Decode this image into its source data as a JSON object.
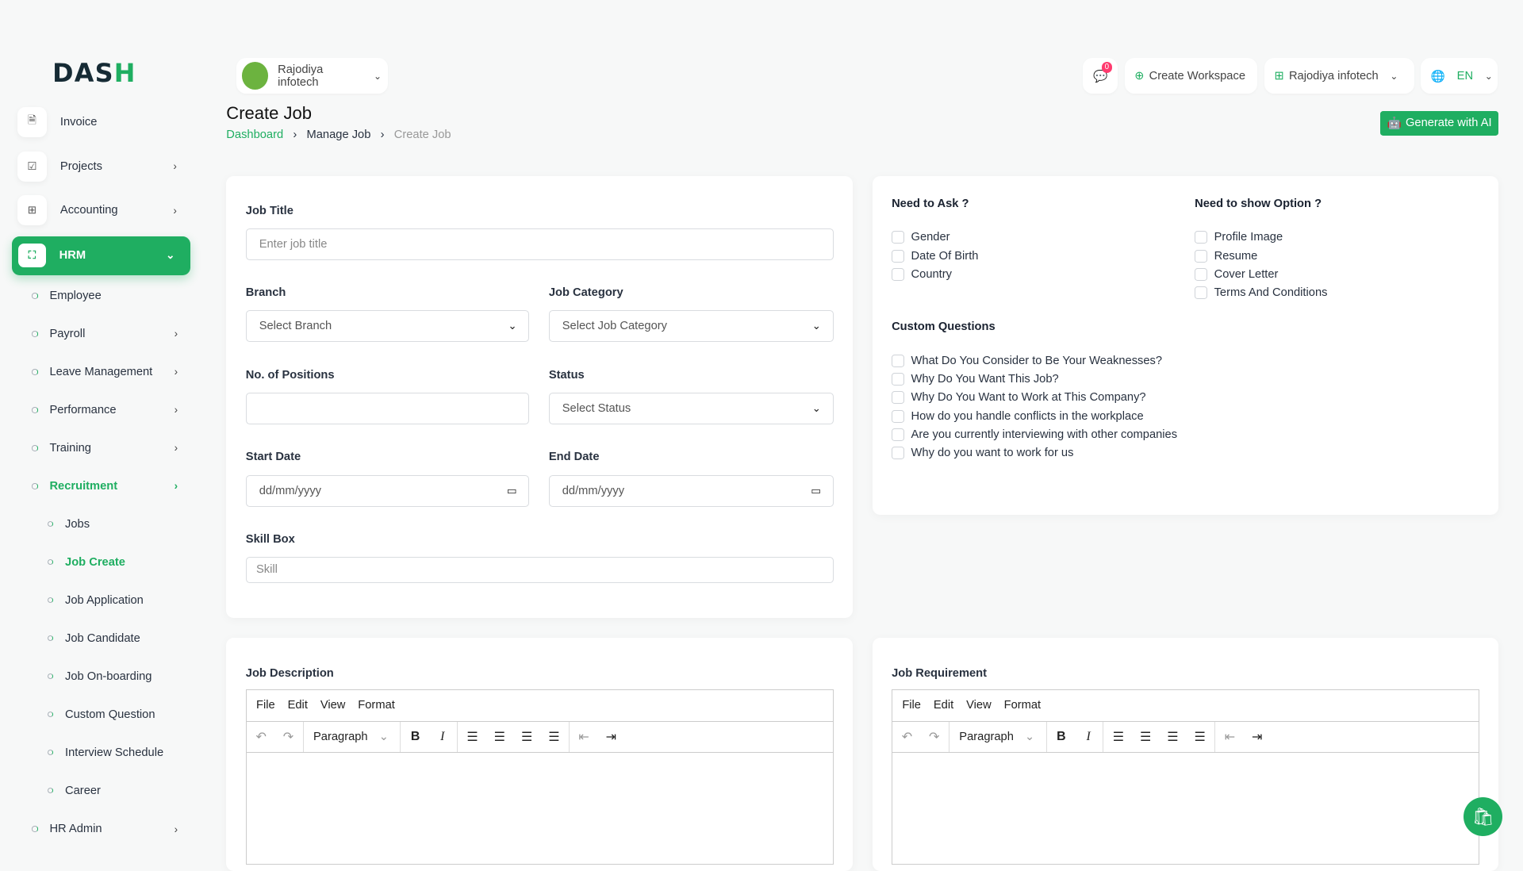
{
  "logo": {
    "text": "DASH"
  },
  "sidebar": {
    "items": [
      {
        "label": "Invoice",
        "icon": "invoice-icon"
      },
      {
        "label": "Projects",
        "icon": "checkbox-icon"
      },
      {
        "label": "Accounting",
        "icon": "apps-icon"
      }
    ],
    "active": {
      "label": "HRM"
    },
    "hrm_items": [
      {
        "label": "Employee",
        "chev": false
      },
      {
        "label": "Payroll",
        "chev": true
      },
      {
        "label": "Leave Management",
        "chev": true
      },
      {
        "label": "Performance",
        "chev": true
      },
      {
        "label": "Training",
        "chev": true
      },
      {
        "label": "Recruitment",
        "chev": true,
        "active": true
      }
    ],
    "recruitment_items": [
      "Jobs",
      "Job Create",
      "Job Application",
      "Job Candidate",
      "Job On-boarding",
      "Custom Question",
      "Interview Schedule",
      "Career"
    ],
    "hr_admin": "HR Admin"
  },
  "topbar": {
    "workspace": "Rajodiya infotech",
    "chat_count": "0",
    "create_workspace": "Create Workspace",
    "company": "Rajodiya infotech",
    "language": "EN"
  },
  "header": {
    "title": "Create Job",
    "breadcrumb": [
      "Dashboard",
      "Manage Job",
      "Create Job"
    ],
    "ai_button": "Generate with AI"
  },
  "form": {
    "job_title": {
      "label": "Job Title",
      "placeholder": "Enter job title"
    },
    "branch": {
      "label": "Branch",
      "value": "Select Branch"
    },
    "category": {
      "label": "Job Category",
      "value": "Select Job Category"
    },
    "positions": {
      "label": "No. of Positions",
      "value": ""
    },
    "status": {
      "label": "Status",
      "value": "Select Status"
    },
    "start": {
      "label": "Start Date",
      "value": "dd/mm/yyyy"
    },
    "end": {
      "label": "End Date",
      "value": "dd/mm/yyyy"
    },
    "skill": {
      "label": "Skill Box",
      "placeholder": "Skill"
    }
  },
  "options": {
    "ask_title": "Need to Ask ?",
    "ask": [
      "Gender",
      "Date Of Birth",
      "Country"
    ],
    "show_title": "Need to show Option ?",
    "show": [
      "Profile Image",
      "Resume",
      "Cover Letter",
      "Terms And Conditions"
    ],
    "custom_title": "Custom Questions",
    "custom": [
      "What Do You Consider to Be Your Weaknesses?",
      "Why Do You Want This Job?",
      "Why Do You Want to Work at This Company?",
      "How do you handle conflicts in the workplace",
      "Are you currently interviewing with other companies",
      "Why do you want to work for us"
    ]
  },
  "editors": [
    {
      "label": "Job Description"
    },
    {
      "label": "Job Requirement"
    }
  ],
  "editor_menu": [
    "File",
    "Edit",
    "View",
    "Format"
  ],
  "editor_block": "Paragraph",
  "colors": {
    "accent": "#1fae61",
    "badge": "#ff3a6e"
  }
}
